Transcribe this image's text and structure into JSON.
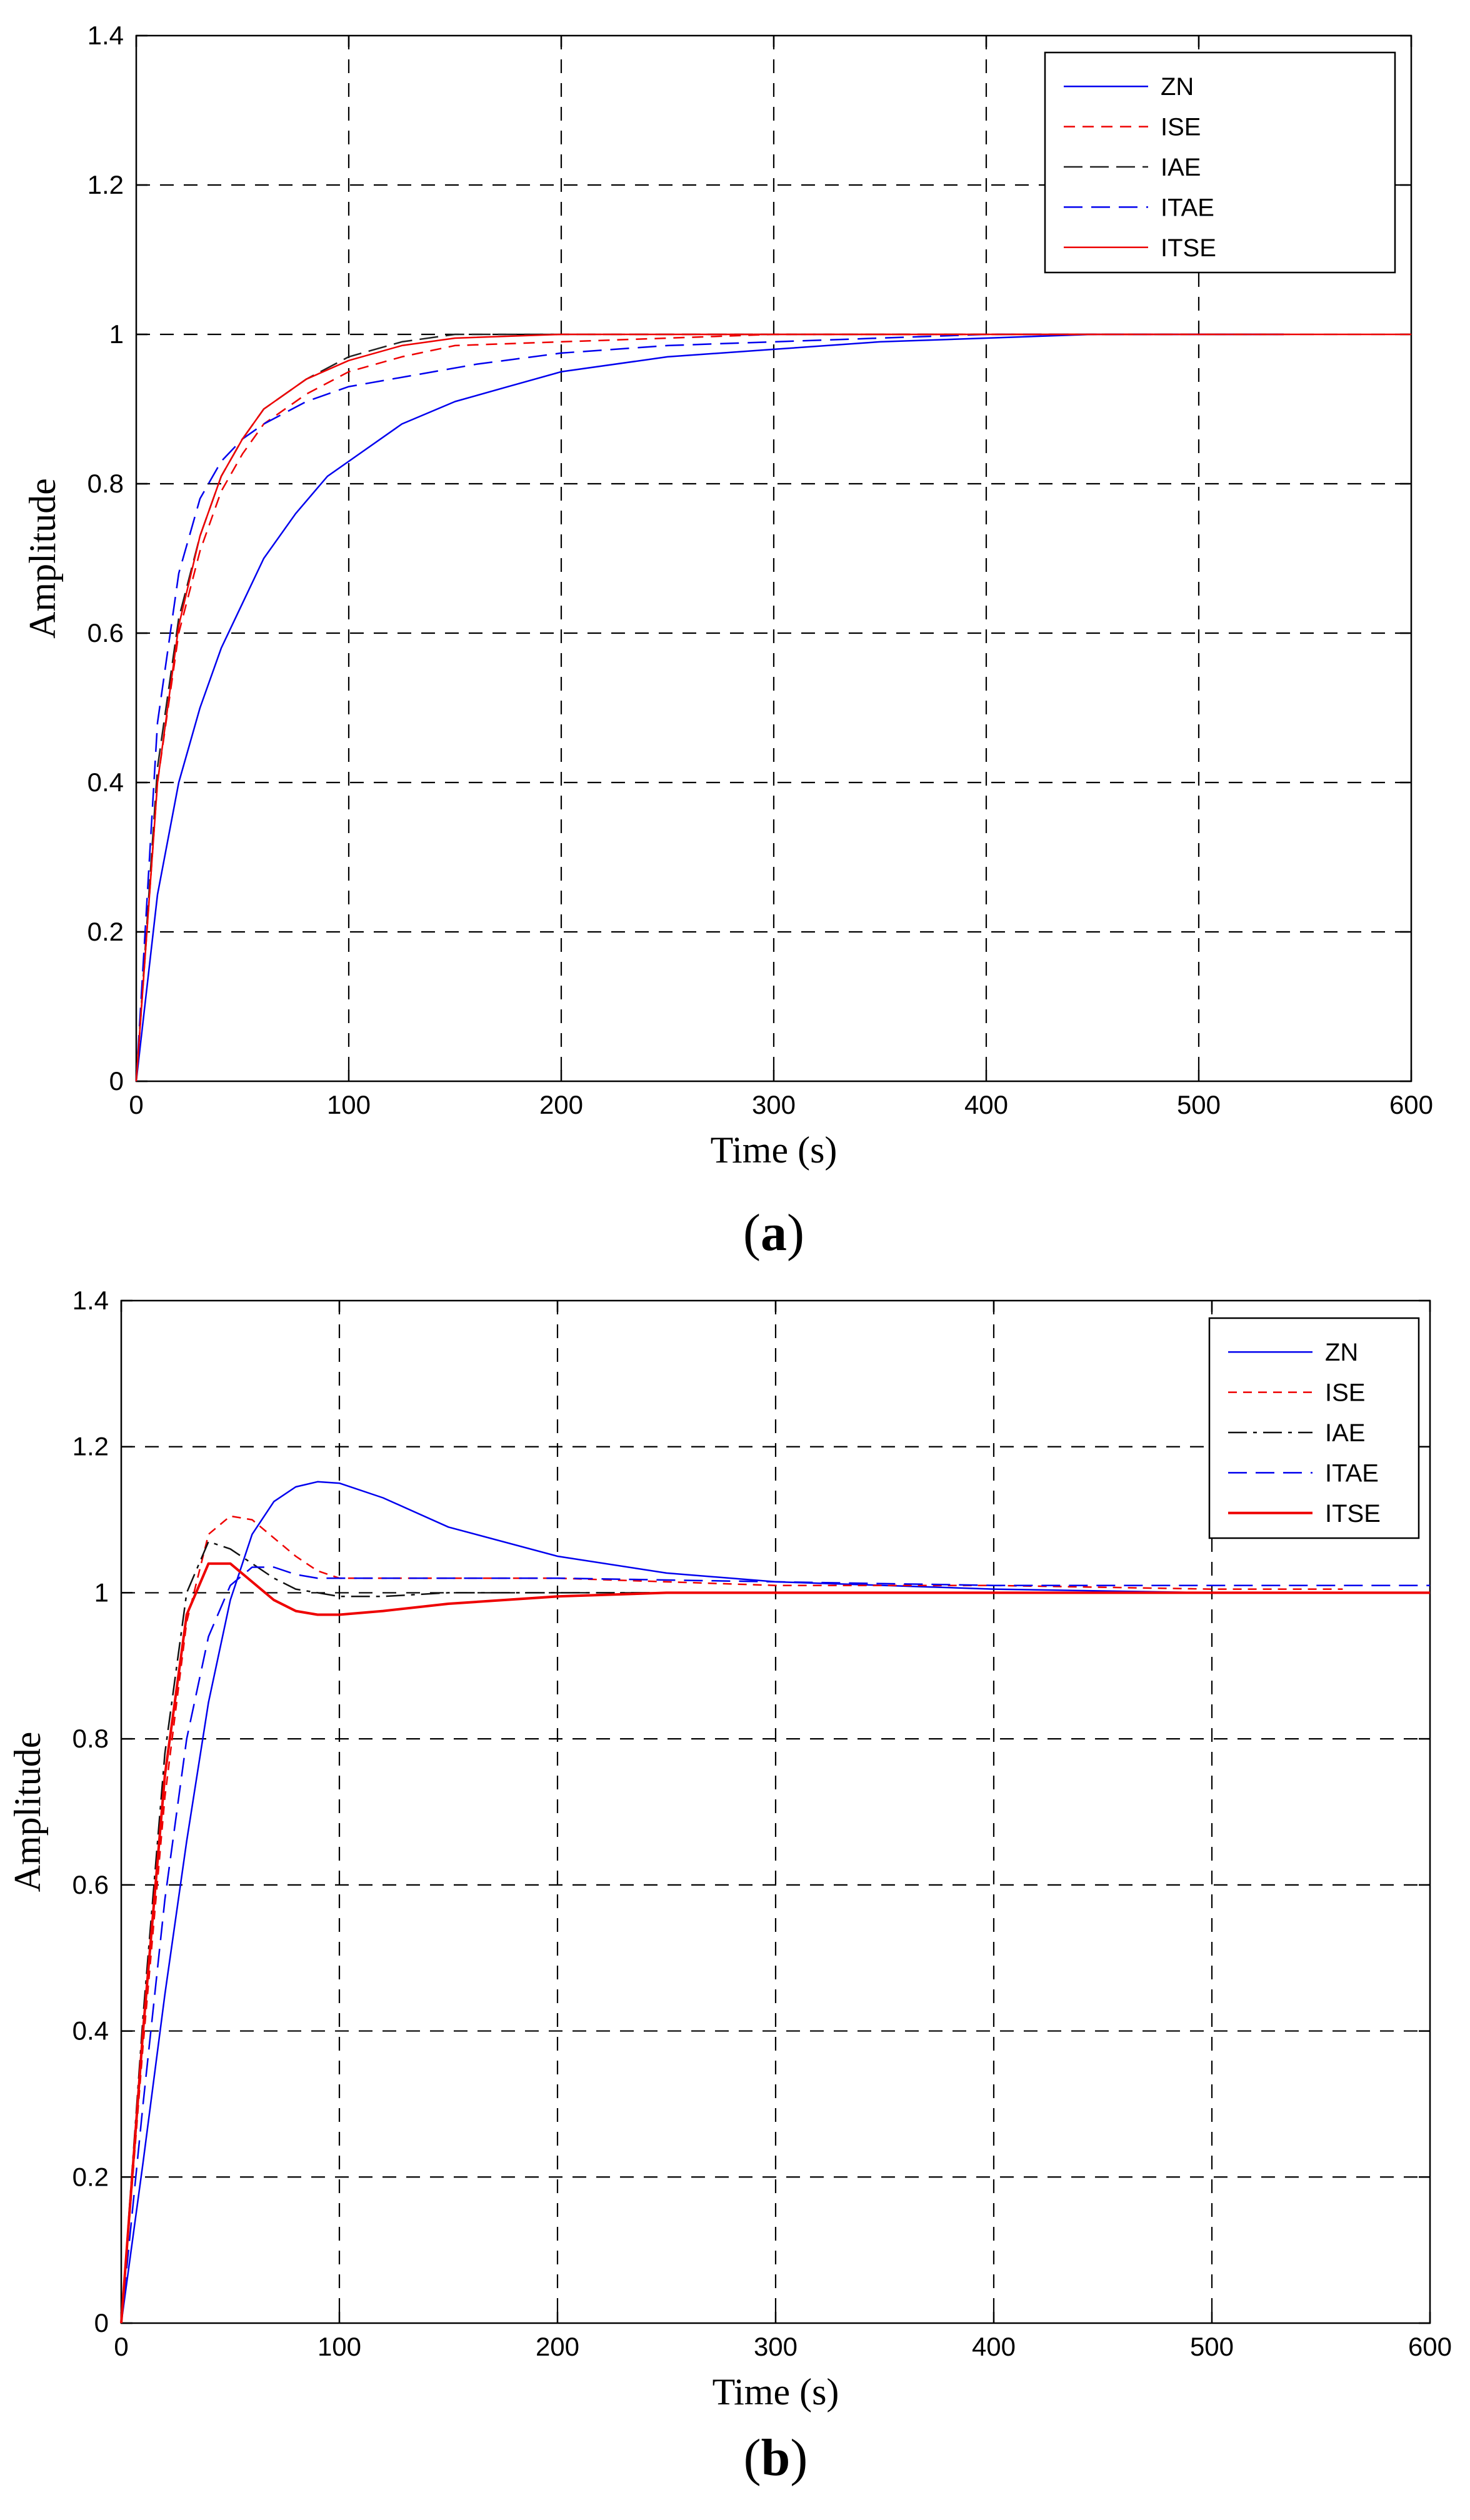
{
  "chart_data": [
    {
      "type": "line",
      "panel_label": "a",
      "title": "",
      "xlabel": "Time (s)",
      "ylabel": "Amplitude",
      "xlim": [
        0,
        600
      ],
      "ylim": [
        0,
        1.4
      ],
      "xticks": [
        0,
        100,
        200,
        300,
        400,
        500,
        600
      ],
      "yticks": [
        0,
        0.2,
        0.4,
        0.6,
        0.8,
        1,
        1.2,
        1.4
      ],
      "grid": true,
      "legend": "top-right",
      "series": [
        {
          "name": "ZN",
          "color": "#0000ee",
          "dash": "",
          "width": 2.5,
          "x": [
            0,
            10,
            20,
            30,
            40,
            50,
            60,
            75,
            90,
            100,
            125,
            150,
            175,
            200,
            250,
            300,
            350,
            400,
            450,
            540
          ],
          "y": [
            0,
            0.25,
            0.4,
            0.5,
            0.58,
            0.64,
            0.7,
            0.76,
            0.81,
            0.83,
            0.88,
            0.91,
            0.93,
            0.95,
            0.97,
            0.98,
            0.99,
            0.995,
            1.0,
            1.0
          ]
        },
        {
          "name": "ISE",
          "color": "#ee0000",
          "dash": "18,12",
          "width": 2.5,
          "x": [
            0,
            10,
            20,
            30,
            40,
            50,
            60,
            80,
            100,
            125,
            150,
            200,
            250,
            300,
            400,
            540
          ],
          "y": [
            0,
            0.4,
            0.6,
            0.71,
            0.79,
            0.84,
            0.88,
            0.92,
            0.95,
            0.97,
            0.985,
            0.99,
            0.995,
            1.0,
            1.0,
            1.0
          ]
        },
        {
          "name": "IAE",
          "color": "#222222",
          "dash": "30,12",
          "width": 2.5,
          "x": [
            0,
            10,
            20,
            30,
            40,
            50,
            60,
            80,
            100,
            125,
            150,
            200,
            300,
            540
          ],
          "y": [
            0,
            0.42,
            0.62,
            0.73,
            0.81,
            0.86,
            0.9,
            0.94,
            0.97,
            0.99,
            1.0,
            1.0,
            1.0,
            1.0
          ]
        },
        {
          "name": "ITAE",
          "color": "#0000ee",
          "dash": "30,14",
          "width": 2.5,
          "x": [
            0,
            10,
            20,
            30,
            40,
            50,
            60,
            80,
            100,
            130,
            160,
            200,
            250,
            300,
            400,
            540
          ],
          "y": [
            0,
            0.48,
            0.68,
            0.78,
            0.83,
            0.86,
            0.88,
            0.91,
            0.93,
            0.945,
            0.96,
            0.975,
            0.985,
            0.99,
            1.0,
            1.0
          ]
        },
        {
          "name": "ITSE",
          "color": "#ee0000",
          "dash": "",
          "width": 2.5,
          "x": [
            0,
            10,
            20,
            30,
            40,
            50,
            60,
            80,
            100,
            125,
            150,
            200,
            300,
            600
          ],
          "y": [
            0,
            0.4,
            0.61,
            0.73,
            0.81,
            0.86,
            0.9,
            0.94,
            0.965,
            0.985,
            0.995,
            1.0,
            1.0,
            1.0
          ]
        }
      ]
    },
    {
      "type": "line",
      "panel_label": "b",
      "title": "",
      "xlabel": "Time (s)",
      "ylabel": "Amplitude",
      "xlim": [
        0,
        600
      ],
      "ylim": [
        0,
        1.4
      ],
      "xticks": [
        0,
        100,
        200,
        300,
        400,
        500,
        600
      ],
      "yticks": [
        0,
        0.2,
        0.4,
        0.6,
        0.8,
        1,
        1.2,
        1.4
      ],
      "grid": true,
      "legend": "top-right",
      "series": [
        {
          "name": "ZN",
          "color": "#0000ee",
          "dash": "",
          "width": 2.5,
          "x": [
            0,
            10,
            20,
            30,
            40,
            50,
            60,
            70,
            80,
            90,
            100,
            120,
            150,
            200,
            250,
            300,
            400,
            500,
            600
          ],
          "y": [
            0,
            0.22,
            0.45,
            0.66,
            0.85,
            0.99,
            1.08,
            1.125,
            1.145,
            1.152,
            1.15,
            1.13,
            1.09,
            1.05,
            1.027,
            1.015,
            1.005,
            1.0,
            1.0
          ]
        },
        {
          "name": "ISE",
          "color": "#ee0000",
          "dash": "14,10",
          "width": 2.5,
          "x": [
            0,
            10,
            20,
            30,
            40,
            50,
            60,
            70,
            80,
            90,
            100,
            150,
            200,
            300,
            400,
            500,
            560
          ],
          "y": [
            0,
            0.38,
            0.72,
            0.96,
            1.08,
            1.105,
            1.1,
            1.075,
            1.05,
            1.03,
            1.02,
            1.02,
            1.02,
            1.01,
            1.01,
            1.005,
            1.005
          ]
        },
        {
          "name": "IAE",
          "color": "#111111",
          "dash": "30,10,6,10",
          "width": 2.5,
          "x": [
            0,
            10,
            20,
            30,
            40,
            50,
            60,
            70,
            80,
            90,
            100,
            120,
            150,
            200,
            300,
            400,
            600
          ],
          "y": [
            0,
            0.42,
            0.78,
            1.0,
            1.07,
            1.06,
            1.04,
            1.02,
            1.005,
            1.0,
            0.995,
            0.995,
            1.0,
            1.0,
            1.0,
            1.0,
            1.0
          ]
        },
        {
          "name": "ITAE",
          "color": "#0000ee",
          "dash": "30,14",
          "width": 2.5,
          "x": [
            0,
            10,
            20,
            30,
            40,
            50,
            60,
            70,
            80,
            90,
            100,
            150,
            200,
            300,
            400,
            500,
            600
          ],
          "y": [
            0,
            0.3,
            0.58,
            0.8,
            0.94,
            1.01,
            1.035,
            1.035,
            1.025,
            1.02,
            1.02,
            1.02,
            1.02,
            1.015,
            1.01,
            1.01,
            1.01
          ]
        },
        {
          "name": "ITSE",
          "color": "#ee0000",
          "dash": "",
          "width": 4,
          "x": [
            0,
            10,
            20,
            30,
            40,
            50,
            60,
            70,
            80,
            90,
            100,
            120,
            150,
            200,
            250,
            300,
            400,
            600
          ],
          "y": [
            0,
            0.4,
            0.75,
            0.97,
            1.04,
            1.04,
            1.015,
            0.99,
            0.975,
            0.97,
            0.97,
            0.975,
            0.985,
            0.995,
            1.0,
            1.0,
            1.0,
            1.0
          ]
        }
      ]
    }
  ]
}
